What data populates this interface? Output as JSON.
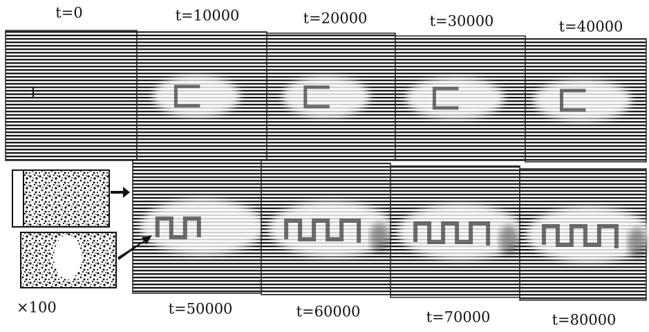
{
  "panels": [
    {
      "label": "t=0"
    },
    {
      "label": "t=10000"
    },
    {
      "label": "t=20000"
    },
    {
      "label": "t=30000"
    },
    {
      "label": "t=40000"
    },
    {
      "label": "t=50000"
    },
    {
      "label": "t=60000"
    },
    {
      "label": "t=70000"
    },
    {
      "label": "t=80000"
    }
  ],
  "inset_label": "×100"
}
